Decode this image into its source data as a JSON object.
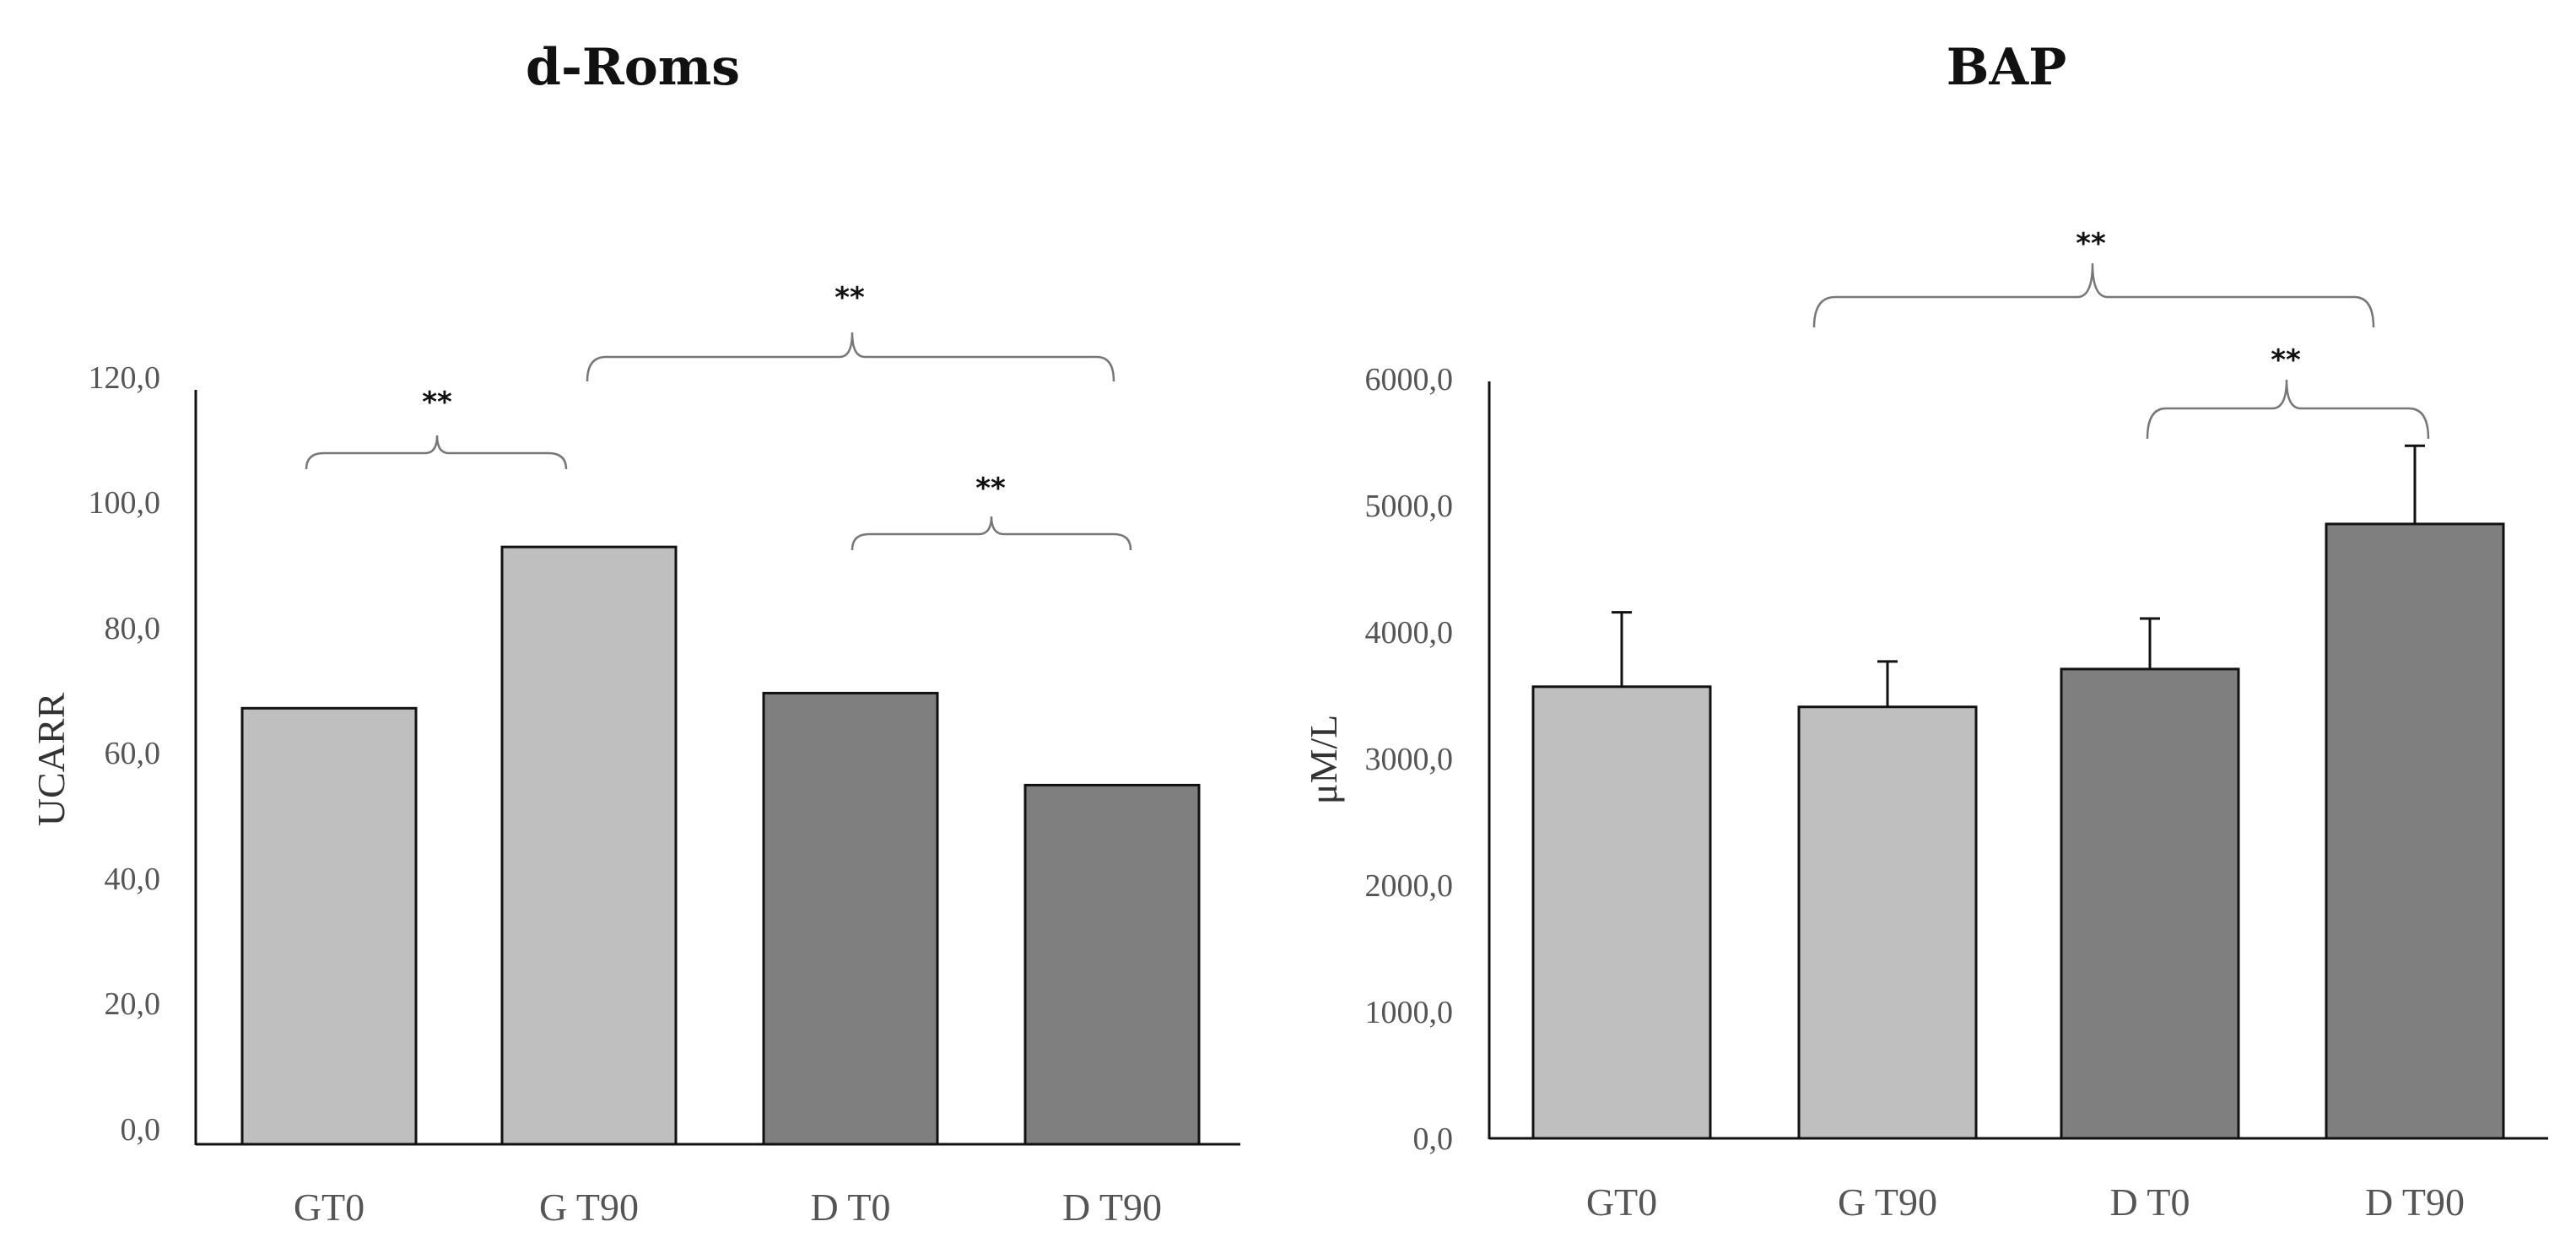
{
  "chart_data": [
    {
      "type": "bar",
      "title": "d-Roms",
      "ylabel": "UCARR",
      "xlabel": "",
      "ylim": [
        0,
        120
      ],
      "yticks": [
        "0,0",
        "20,0",
        "40,0",
        "60,0",
        "80,0",
        "100,0",
        "120,0"
      ],
      "categories": [
        "GT0",
        "G T90",
        "D T0",
        "D T90"
      ],
      "values": [
        69.2,
        94.8,
        71.6,
        57.0
      ],
      "errors": [
        null,
        null,
        null,
        null
      ],
      "colors": [
        "#bfbfbf",
        "#bfbfbf",
        "#7f7f7f",
        "#7f7f7f"
      ],
      "significance": [
        {
          "from": 0,
          "to": 1,
          "label": "**"
        },
        {
          "from": 1,
          "to": 3,
          "label": "**"
        },
        {
          "from": 2,
          "to": 3,
          "label": "**"
        }
      ]
    },
    {
      "type": "bar",
      "title": "BAP",
      "ylabel": "μM/L",
      "xlabel": "",
      "ylim": [
        0,
        6000
      ],
      "yticks": [
        "0,0",
        "1000,0",
        "2000,0",
        "3000,0",
        "4000,0",
        "5000,0",
        "6000,0"
      ],
      "categories": [
        "GT0",
        "G T90",
        "D T0",
        "D T90"
      ],
      "values": [
        3580,
        3420,
        3720,
        4870
      ],
      "errors": [
        590,
        360,
        400,
        620
      ],
      "colors": [
        "#bfbfbf",
        "#bfbfbf",
        "#7f7f7f",
        "#7f7f7f"
      ],
      "significance": [
        {
          "from": 1,
          "to": 3,
          "label": "**"
        },
        {
          "from": 2,
          "to": 3,
          "label": "**"
        }
      ]
    }
  ]
}
